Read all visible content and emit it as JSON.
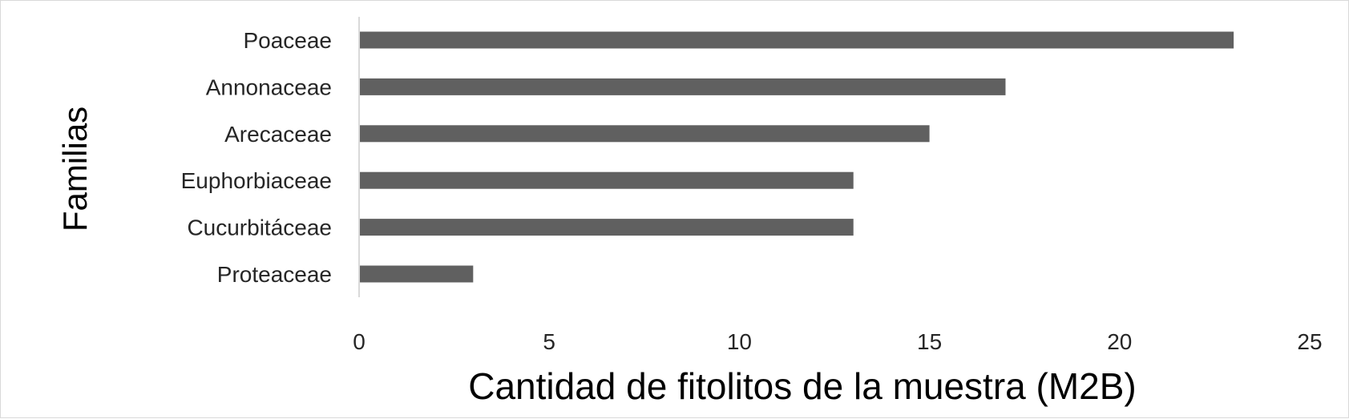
{
  "chart_data": {
    "type": "bar",
    "orientation": "horizontal",
    "categories": [
      "Poaceae",
      "Annonaceae",
      "Arecaceae",
      "Euphorbiaceae",
      "Cucurbitáceae",
      "Proteaceae"
    ],
    "values": [
      23,
      17,
      15,
      13,
      13,
      3
    ],
    "xlabel": "Cantidad de fitolitos de la muestra (M2B)",
    "ylabel": "Familias",
    "xlim": [
      0,
      25
    ],
    "xticks": [
      0,
      5,
      10,
      15,
      20,
      25
    ],
    "grid": false,
    "legend": "none",
    "bar_color": "#606060",
    "axis_color": "#d9d9d9"
  }
}
